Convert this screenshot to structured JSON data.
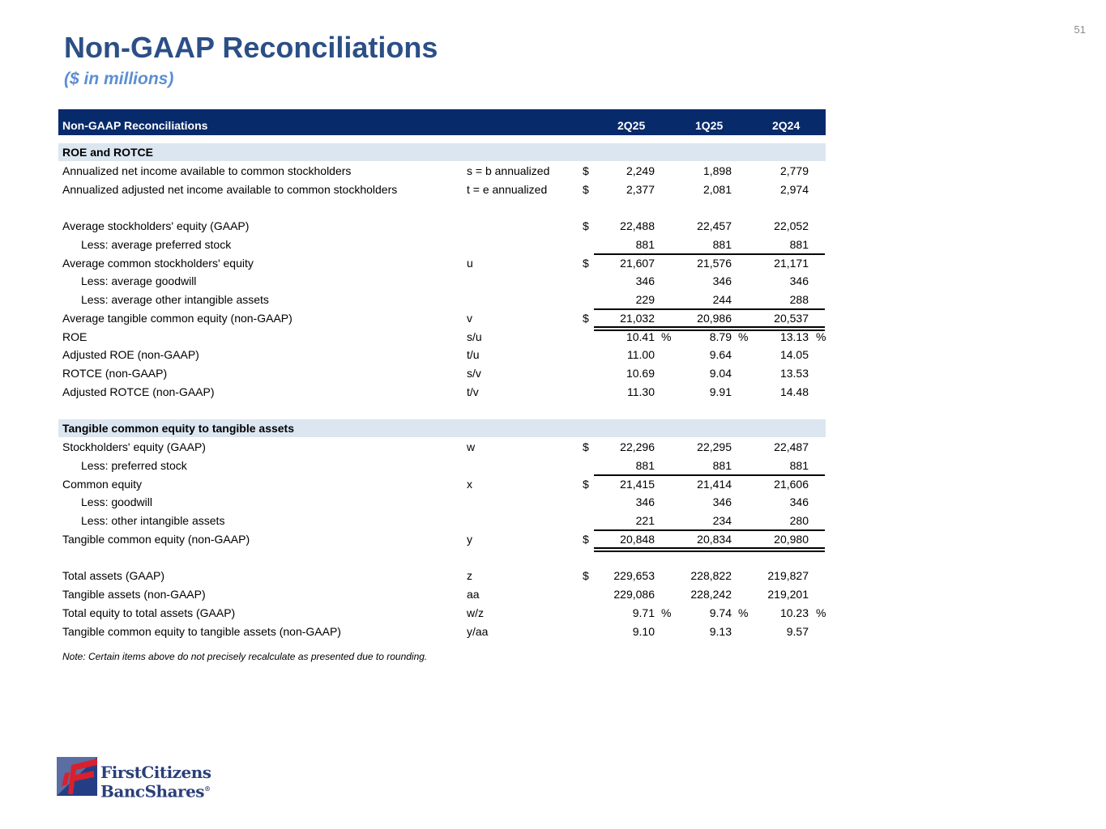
{
  "page_number": "51",
  "title": "Non-GAAP Reconciliations",
  "subtitle": "($ in millions)",
  "table": {
    "header": {
      "label": "Non-GAAP Reconciliations",
      "columns": [
        "2Q25",
        "1Q25",
        "2Q24"
      ]
    },
    "rows": [
      {
        "type": "section",
        "label": "ROE and ROTCE"
      },
      {
        "label": "Annualized net income available to common stockholders",
        "ref": "s = b annualized",
        "dollar": "$",
        "values": [
          "2,249",
          "1,898",
          "2,779"
        ]
      },
      {
        "label": "Annualized adjusted net income available to common stockholders",
        "ref": "t = e annualized",
        "dollar": "$",
        "values": [
          "2,377",
          "2,081",
          "2,974"
        ]
      },
      {
        "type": "blank"
      },
      {
        "label": "Average stockholders' equity (GAAP)",
        "ref": "",
        "dollar": "$",
        "values": [
          "22,488",
          "22,457",
          "22,052"
        ]
      },
      {
        "type": "indent",
        "label": "Less: average preferred stock",
        "ref": "",
        "values": [
          "881",
          "881",
          "881"
        ]
      },
      {
        "label": "Average common stockholders' equity",
        "ref": "u",
        "dollar": "$",
        "values": [
          "21,607",
          "21,576",
          "21,171"
        ],
        "line_above": true
      },
      {
        "type": "indent",
        "label": "Less: average goodwill",
        "ref": "",
        "values": [
          "346",
          "346",
          "346"
        ]
      },
      {
        "type": "indent",
        "label": "Less: average other intangible assets",
        "ref": "",
        "values": [
          "229",
          "244",
          "288"
        ]
      },
      {
        "label": "Average tangible common equity (non-GAAP)",
        "ref": "v",
        "dollar": "$",
        "values": [
          "21,032",
          "20,986",
          "20,537"
        ],
        "line_above": true,
        "double_below": true
      },
      {
        "label": "ROE",
        "ref": "s/u",
        "values": [
          "10.41",
          "8.79",
          "13.13"
        ],
        "pct": "%"
      },
      {
        "label": "Adjusted ROE (non-GAAP)",
        "ref": "t/u",
        "values": [
          "11.00",
          "9.64",
          "14.05"
        ]
      },
      {
        "label": "ROTCE (non-GAAP)",
        "ref": "s/v",
        "values": [
          "10.69",
          "9.04",
          "13.53"
        ]
      },
      {
        "label": "Adjusted ROTCE (non-GAAP)",
        "ref": "t/v",
        "values": [
          "11.30",
          "9.91",
          "14.48"
        ]
      },
      {
        "type": "blank"
      },
      {
        "type": "section",
        "label": "Tangible common equity to tangible assets"
      },
      {
        "label": "Stockholders' equity (GAAP)",
        "ref": "w",
        "dollar": "$",
        "values": [
          "22,296",
          "22,295",
          "22,487"
        ]
      },
      {
        "type": "indent",
        "label": "Less: preferred stock",
        "ref": "",
        "values": [
          "881",
          "881",
          "881"
        ]
      },
      {
        "label": "Common equity",
        "ref": "x",
        "dollar": "$",
        "values": [
          "21,415",
          "21,414",
          "21,606"
        ],
        "line_above": true
      },
      {
        "type": "indent",
        "label": "Less: goodwill",
        "ref": "",
        "values": [
          "346",
          "346",
          "346"
        ]
      },
      {
        "type": "indent",
        "label": "Less: other intangible assets",
        "ref": "",
        "values": [
          "221",
          "234",
          "280"
        ]
      },
      {
        "label": "Tangible common equity (non-GAAP)",
        "ref": "y",
        "dollar": "$",
        "values": [
          "20,848",
          "20,834",
          "20,980"
        ],
        "line_above": true,
        "double_below": true
      },
      {
        "type": "blank"
      },
      {
        "label": "Total assets (GAAP)",
        "ref": "z",
        "dollar": "$",
        "values": [
          "229,653",
          "228,822",
          "219,827"
        ]
      },
      {
        "label": "Tangible assets (non-GAAP)",
        "ref": "aa",
        "values": [
          "229,086",
          "228,242",
          "219,201"
        ]
      },
      {
        "label": "Total equity to total assets (GAAP)",
        "ref": "w/z",
        "values": [
          "9.71",
          "9.74",
          "10.23"
        ],
        "pct": "%"
      },
      {
        "label": "Tangible common equity to tangible assets (non-GAAP)",
        "ref": "y/aa",
        "values": [
          "9.10",
          "9.13",
          "9.57"
        ]
      }
    ]
  },
  "note": "Note: Certain items above do not precisely recalculate as presented due to rounding.",
  "logo": {
    "line1": "FirstCitizens",
    "line2": "BancShares",
    "mark": "®"
  },
  "colors": {
    "title": "#2b4f86",
    "subtitle": "#5b8fd1",
    "header_bg": "#072a6b",
    "section_bg": "#dce6f1"
  }
}
